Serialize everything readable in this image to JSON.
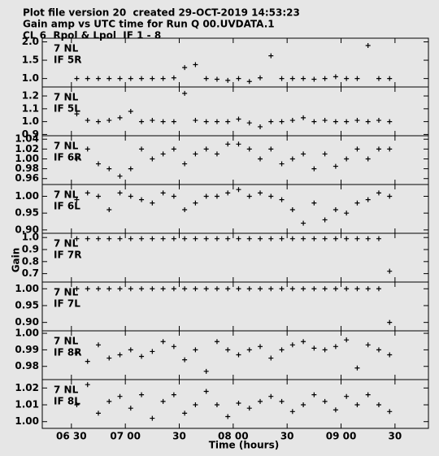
{
  "header": {
    "lines": [
      "Plot file version 20  created 29-OCT-2019 14:53:23",
      "Gain amp vs UTC time for Run Q 00.UVDATA.1",
      "CL 6  Rpol & Lpol  IF 1 - 8"
    ]
  },
  "ylabel": "Gain",
  "xaxis": {
    "label": "Time (hours)",
    "xlim": [
      6.23,
      9.81
    ],
    "xticks": [
      {
        "value": 6.5,
        "label": "06 30"
      },
      {
        "value": 7.0,
        "label": "07 00"
      },
      {
        "value": 7.5,
        "label": "30"
      },
      {
        "value": 8.0,
        "label": "08 00"
      },
      {
        "value": 8.5,
        "label": "30"
      },
      {
        "value": 9.0,
        "label": "09 00"
      },
      {
        "value": 9.5,
        "label": "30"
      }
    ]
  },
  "chart_data": [
    {
      "type": "scatter",
      "antenna": "7 NL",
      "if": "IF 5R",
      "ylim": [
        0.77,
        2.1
      ],
      "yticks": [
        {
          "value": 1.0,
          "label": "1.0"
        },
        1.5,
        {
          "value": 2.0,
          "label": "2.0"
        }
      ],
      "x": [
        6.55,
        6.65,
        6.75,
        6.85,
        6.95,
        7.05,
        7.15,
        7.25,
        7.35,
        7.45,
        7.55,
        7.65,
        7.75,
        7.85,
        7.95,
        8.05,
        8.15,
        8.25,
        8.35,
        8.45,
        8.55,
        8.65,
        8.75,
        8.85,
        8.95,
        9.05,
        9.15,
        9.25,
        9.35,
        9.45
      ],
      "values": [
        1.0,
        1.0,
        1.0,
        1.0,
        1.0,
        1.0,
        1.0,
        1.0,
        1.0,
        1.02,
        1.3,
        1.38,
        1.0,
        0.98,
        0.95,
        1.0,
        0.92,
        1.02,
        1.62,
        1.0,
        1.0,
        1.0,
        0.98,
        1.0,
        1.05,
        1.0,
        1.0,
        1.9,
        1.0,
        1.0
      ]
    },
    {
      "type": "scatter",
      "antenna": "7 NL",
      "if": "IF 5L",
      "ylim": [
        0.89,
        1.27
      ],
      "yticks": [
        {
          "value": 0.9,
          "label": "0.9"
        },
        {
          "value": 1.0,
          "label": "1.0"
        },
        1.1,
        1.2
      ],
      "x": [
        6.55,
        6.65,
        6.75,
        6.85,
        6.95,
        7.05,
        7.15,
        7.25,
        7.35,
        7.45,
        7.55,
        7.65,
        7.75,
        7.85,
        7.95,
        8.05,
        8.15,
        8.25,
        8.35,
        8.45,
        8.55,
        8.65,
        8.75,
        8.85,
        8.95,
        9.05,
        9.15,
        9.25,
        9.35,
        9.45
      ],
      "values": [
        1.06,
        1.01,
        1.0,
        1.01,
        1.03,
        1.08,
        1.0,
        1.01,
        1.0,
        1.0,
        1.22,
        1.01,
        1.0,
        1.0,
        1.0,
        1.02,
        0.99,
        0.96,
        1.0,
        1.0,
        1.01,
        1.03,
        1.0,
        1.01,
        1.0,
        1.0,
        1.01,
        1.0,
        1.01,
        1.0
      ]
    },
    {
      "type": "scatter",
      "antenna": "7 NL",
      "if": "IF 6R",
      "ylim": [
        0.948,
        1.047
      ],
      "yticks": [
        0.96,
        0.98,
        {
          "value": 1.0,
          "label": "1.00"
        },
        1.02,
        1.04
      ],
      "x": [
        6.55,
        6.65,
        6.75,
        6.85,
        6.95,
        7.05,
        7.15,
        7.25,
        7.35,
        7.45,
        7.55,
        7.65,
        7.75,
        7.85,
        7.95,
        8.05,
        8.15,
        8.25,
        8.35,
        8.45,
        8.55,
        8.65,
        8.75,
        8.85,
        8.95,
        9.05,
        9.15,
        9.25,
        9.35,
        9.45
      ],
      "values": [
        1.0,
        1.02,
        0.99,
        0.98,
        0.965,
        0.98,
        1.02,
        1.0,
        1.01,
        1.02,
        0.99,
        1.01,
        1.02,
        1.01,
        1.03,
        1.03,
        1.02,
        1.0,
        1.02,
        0.99,
        1.0,
        1.01,
        0.98,
        1.01,
        0.985,
        1.0,
        1.02,
        1.0,
        1.02,
        1.02
      ]
    },
    {
      "type": "scatter",
      "antenna": "7 NL",
      "if": "IF 6L",
      "ylim": [
        0.89,
        1.035
      ],
      "yticks": [
        {
          "value": 0.9,
          "label": "0.90"
        },
        0.95,
        {
          "value": 1.0,
          "label": "1.00"
        }
      ],
      "x": [
        6.55,
        6.65,
        6.75,
        6.85,
        6.95,
        7.05,
        7.15,
        7.25,
        7.35,
        7.45,
        7.55,
        7.65,
        7.75,
        7.85,
        7.95,
        8.05,
        8.15,
        8.25,
        8.35,
        8.45,
        8.55,
        8.65,
        8.75,
        8.85,
        8.95,
        9.05,
        9.15,
        9.25,
        9.35,
        9.45
      ],
      "values": [
        0.99,
        1.01,
        1.0,
        0.96,
        1.01,
        1.0,
        0.99,
        0.98,
        1.01,
        1.0,
        0.96,
        0.98,
        1.0,
        1.0,
        1.01,
        1.02,
        1.0,
        1.01,
        1.0,
        0.99,
        0.96,
        0.92,
        0.98,
        0.93,
        0.96,
        0.95,
        0.98,
        0.99,
        1.01,
        1.0
      ]
    },
    {
      "type": "scatter",
      "antenna": "7 NL",
      "if": "IF 7R",
      "ylim": [
        0.63,
        1.035
      ],
      "yticks": [
        0.7,
        0.8,
        0.9,
        {
          "value": 1.0,
          "label": "1.0"
        }
      ],
      "x": [
        6.55,
        6.65,
        6.75,
        6.85,
        6.95,
        7.05,
        7.15,
        7.25,
        7.35,
        7.45,
        7.55,
        7.65,
        7.75,
        7.85,
        7.95,
        8.05,
        8.15,
        8.25,
        8.35,
        8.45,
        8.55,
        8.65,
        8.75,
        8.85,
        8.95,
        9.05,
        9.15,
        9.25,
        9.35,
        9.45
      ],
      "values": [
        0.99,
        0.99,
        0.99,
        0.99,
        0.99,
        0.99,
        0.99,
        0.99,
        0.99,
        0.99,
        0.99,
        0.99,
        0.99,
        0.99,
        0.99,
        0.99,
        0.99,
        0.99,
        0.99,
        0.99,
        0.99,
        0.99,
        0.99,
        0.99,
        0.99,
        0.99,
        0.99,
        0.99,
        0.99,
        0.72
      ]
    },
    {
      "type": "scatter",
      "antenna": "7 NL",
      "if": "IF 7L",
      "ylim": [
        0.875,
        1.02
      ],
      "yticks": [
        {
          "value": 0.9,
          "label": "0.90"
        },
        0.95,
        {
          "value": 1.0,
          "label": "1.00"
        }
      ],
      "x": [
        6.55,
        6.65,
        6.75,
        6.85,
        6.95,
        7.05,
        7.15,
        7.25,
        7.35,
        7.45,
        7.55,
        7.65,
        7.75,
        7.85,
        7.95,
        8.05,
        8.15,
        8.25,
        8.35,
        8.45,
        8.55,
        8.65,
        8.75,
        8.85,
        8.95,
        9.05,
        9.15,
        9.25,
        9.35,
        9.45
      ],
      "values": [
        1.0,
        1.0,
        1.0,
        1.0,
        1.0,
        1.0,
        1.0,
        1.0,
        1.0,
        1.0,
        1.0,
        1.0,
        1.0,
        1.0,
        1.0,
        1.0,
        1.0,
        1.0,
        1.0,
        1.0,
        1.0,
        1.0,
        1.0,
        1.0,
        1.0,
        1.0,
        1.0,
        1.0,
        1.0,
        0.9
      ]
    },
    {
      "type": "scatter",
      "antenna": "7 NL",
      "if": "IF 8R",
      "ylim": [
        0.972,
        1.0015
      ],
      "yticks": [
        0.98,
        0.99,
        {
          "value": 1.0,
          "label": "1.00"
        }
      ],
      "x": [
        6.55,
        6.65,
        6.75,
        6.85,
        6.95,
        7.05,
        7.15,
        7.25,
        7.35,
        7.45,
        7.55,
        7.65,
        7.75,
        7.85,
        7.95,
        8.05,
        8.15,
        8.25,
        8.35,
        8.45,
        8.55,
        8.65,
        8.75,
        8.85,
        8.95,
        9.05,
        9.15,
        9.25,
        9.35,
        9.45
      ],
      "values": [
        0.988,
        0.983,
        0.993,
        0.985,
        0.987,
        0.99,
        0.986,
        0.989,
        0.995,
        0.992,
        0.984,
        0.99,
        0.977,
        0.995,
        0.99,
        0.987,
        0.99,
        0.992,
        0.985,
        0.99,
        0.993,
        0.995,
        0.991,
        0.99,
        0.992,
        0.996,
        0.979,
        0.993,
        0.99,
        0.987
      ]
    },
    {
      "type": "scatter",
      "antenna": "7 NL",
      "if": "IF 8L",
      "ylim": [
        0.996,
        1.025
      ],
      "yticks": [
        {
          "value": 1.0,
          "label": "1.00"
        },
        1.01,
        1.02
      ],
      "x": [
        6.55,
        6.65,
        6.75,
        6.85,
        6.95,
        7.05,
        7.15,
        7.25,
        7.35,
        7.45,
        7.55,
        7.65,
        7.75,
        7.85,
        7.95,
        8.05,
        8.15,
        8.25,
        8.35,
        8.45,
        8.55,
        8.65,
        8.75,
        8.85,
        8.95,
        9.05,
        9.15,
        9.25,
        9.35,
        9.45
      ],
      "values": [
        1.01,
        1.022,
        1.005,
        1.012,
        1.015,
        1.008,
        1.016,
        1.002,
        1.012,
        1.016,
        1.005,
        1.01,
        1.018,
        1.01,
        1.003,
        1.011,
        1.008,
        1.012,
        1.015,
        1.012,
        1.006,
        1.01,
        1.016,
        1.012,
        1.007,
        1.015,
        1.01,
        1.016,
        1.01,
        1.006
      ]
    }
  ]
}
